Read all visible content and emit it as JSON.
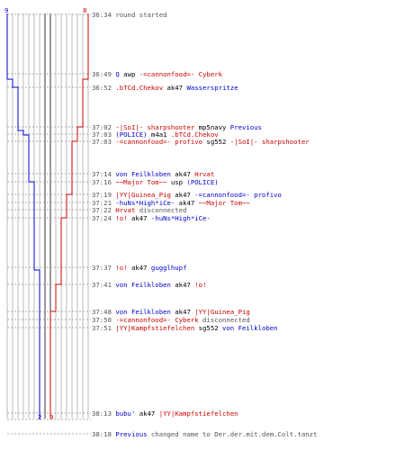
{
  "colors": {
    "red": "#cc0000",
    "blue": "#0000cc",
    "gray": "#555555",
    "black": "#000000",
    "grid": "#bbbbbb"
  },
  "score": {
    "blue_top": "9",
    "red_top": "8",
    "blue_bottom": "2",
    "red_bottom": "0"
  },
  "events": [
    {
      "time": "36:34",
      "parts": [
        {
          "t": "round started",
          "c": "gray"
        }
      ]
    },
    {
      "time": "36:49",
      "parts": [
        {
          "t": "Q",
          "c": "blue"
        },
        {
          "t": " awp ",
          "c": "black"
        },
        {
          "t": "-=cannonfood=- Cyberk",
          "c": "red"
        }
      ]
    },
    {
      "time": "36:52",
      "parts": [
        {
          "t": ".bTCd.Chekov",
          "c": "red"
        },
        {
          "t": " ak47 ",
          "c": "black"
        },
        {
          "t": "Wasserspritze",
          "c": "blue"
        }
      ]
    },
    {
      "time": "37:02",
      "parts": [
        {
          "t": "-|SoI|- sharpshooter",
          "c": "red"
        },
        {
          "t": " mp5navy ",
          "c": "black"
        },
        {
          "t": "Previous",
          "c": "blue"
        }
      ]
    },
    {
      "time": "37:03",
      "parts": [
        {
          "t": "(POLICE)",
          "c": "blue"
        },
        {
          "t": " m4a1 ",
          "c": "black"
        },
        {
          "t": ".bTCd.Chekov",
          "c": "red"
        }
      ]
    },
    {
      "time": "37:03",
      "parts": [
        {
          "t": "-=cannonfood=- profivo",
          "c": "red"
        },
        {
          "t": " sg552 ",
          "c": "black"
        },
        {
          "t": "-|SoI|- sharpshooter",
          "c": "red"
        }
      ]
    },
    {
      "time": "37:14",
      "parts": [
        {
          "t": "von Feilkloben",
          "c": "blue"
        },
        {
          "t": " ak47 ",
          "c": "black"
        },
        {
          "t": "Hrvat",
          "c": "red"
        }
      ]
    },
    {
      "time": "37:16",
      "parts": [
        {
          "t": "~~Major Tom~~",
          "c": "red"
        },
        {
          "t": " usp ",
          "c": "black"
        },
        {
          "t": "(POLICE)",
          "c": "blue"
        }
      ]
    },
    {
      "time": "37:19",
      "parts": [
        {
          "t": "|YY|Guinea_Pig",
          "c": "red"
        },
        {
          "t": " ak47 ",
          "c": "black"
        },
        {
          "t": "-=cannonfood=- profivo",
          "c": "blue"
        }
      ]
    },
    {
      "time": "37:21",
      "parts": [
        {
          "t": "-huNs*High*iCe-",
          "c": "blue"
        },
        {
          "t": " ak47 ",
          "c": "black"
        },
        {
          "t": "~~Major Tom~~",
          "c": "red"
        }
      ]
    },
    {
      "time": "37:22",
      "parts": [
        {
          "t": "Hrvat",
          "c": "red"
        },
        {
          "t": " disconnected",
          "c": "gray"
        }
      ]
    },
    {
      "time": "37:24",
      "parts": [
        {
          "t": "!o!",
          "c": "red"
        },
        {
          "t": " ak47 ",
          "c": "black"
        },
        {
          "t": "-huNs*High*iCe-",
          "c": "blue"
        }
      ]
    },
    {
      "time": "37:37",
      "parts": [
        {
          "t": "!o!",
          "c": "red"
        },
        {
          "t": " ak47 ",
          "c": "black"
        },
        {
          "t": "gugglhupf",
          "c": "blue"
        }
      ]
    },
    {
      "time": "37:41",
      "parts": [
        {
          "t": "von Feilkloben",
          "c": "blue"
        },
        {
          "t": " ak47 ",
          "c": "black"
        },
        {
          "t": "!o!",
          "c": "red"
        }
      ]
    },
    {
      "time": "37:48",
      "parts": [
        {
          "t": "von Feilkloben",
          "c": "blue"
        },
        {
          "t": " ak47 ",
          "c": "black"
        },
        {
          "t": "|YY|Guinea_Pig",
          "c": "red"
        }
      ]
    },
    {
      "time": "37:50",
      "parts": [
        {
          "t": "-=cannonfood=- Cyberk",
          "c": "red"
        },
        {
          "t": "  disconnected",
          "c": "gray"
        }
      ]
    },
    {
      "time": "37:51",
      "parts": [
        {
          "t": "|YY|Kampfstiefelchen",
          "c": "red"
        },
        {
          "t": " sg552 ",
          "c": "black"
        },
        {
          "t": "von Feilkloben",
          "c": "blue"
        }
      ]
    },
    {
      "time": "38:13",
      "parts": [
        {
          "t": "bubu'",
          "c": "blue"
        },
        {
          "t": " ak47 ",
          "c": "black"
        },
        {
          "t": "|YY|Kampfstiefelchen",
          "c": "red"
        }
      ]
    },
    {
      "time": "38:18",
      "parts": [
        {
          "t": "Previous",
          "c": "blue"
        },
        {
          "t": " changed name to Der.der.mit.dem.Colt.tanzt",
          "c": "gray"
        }
      ]
    }
  ]
}
